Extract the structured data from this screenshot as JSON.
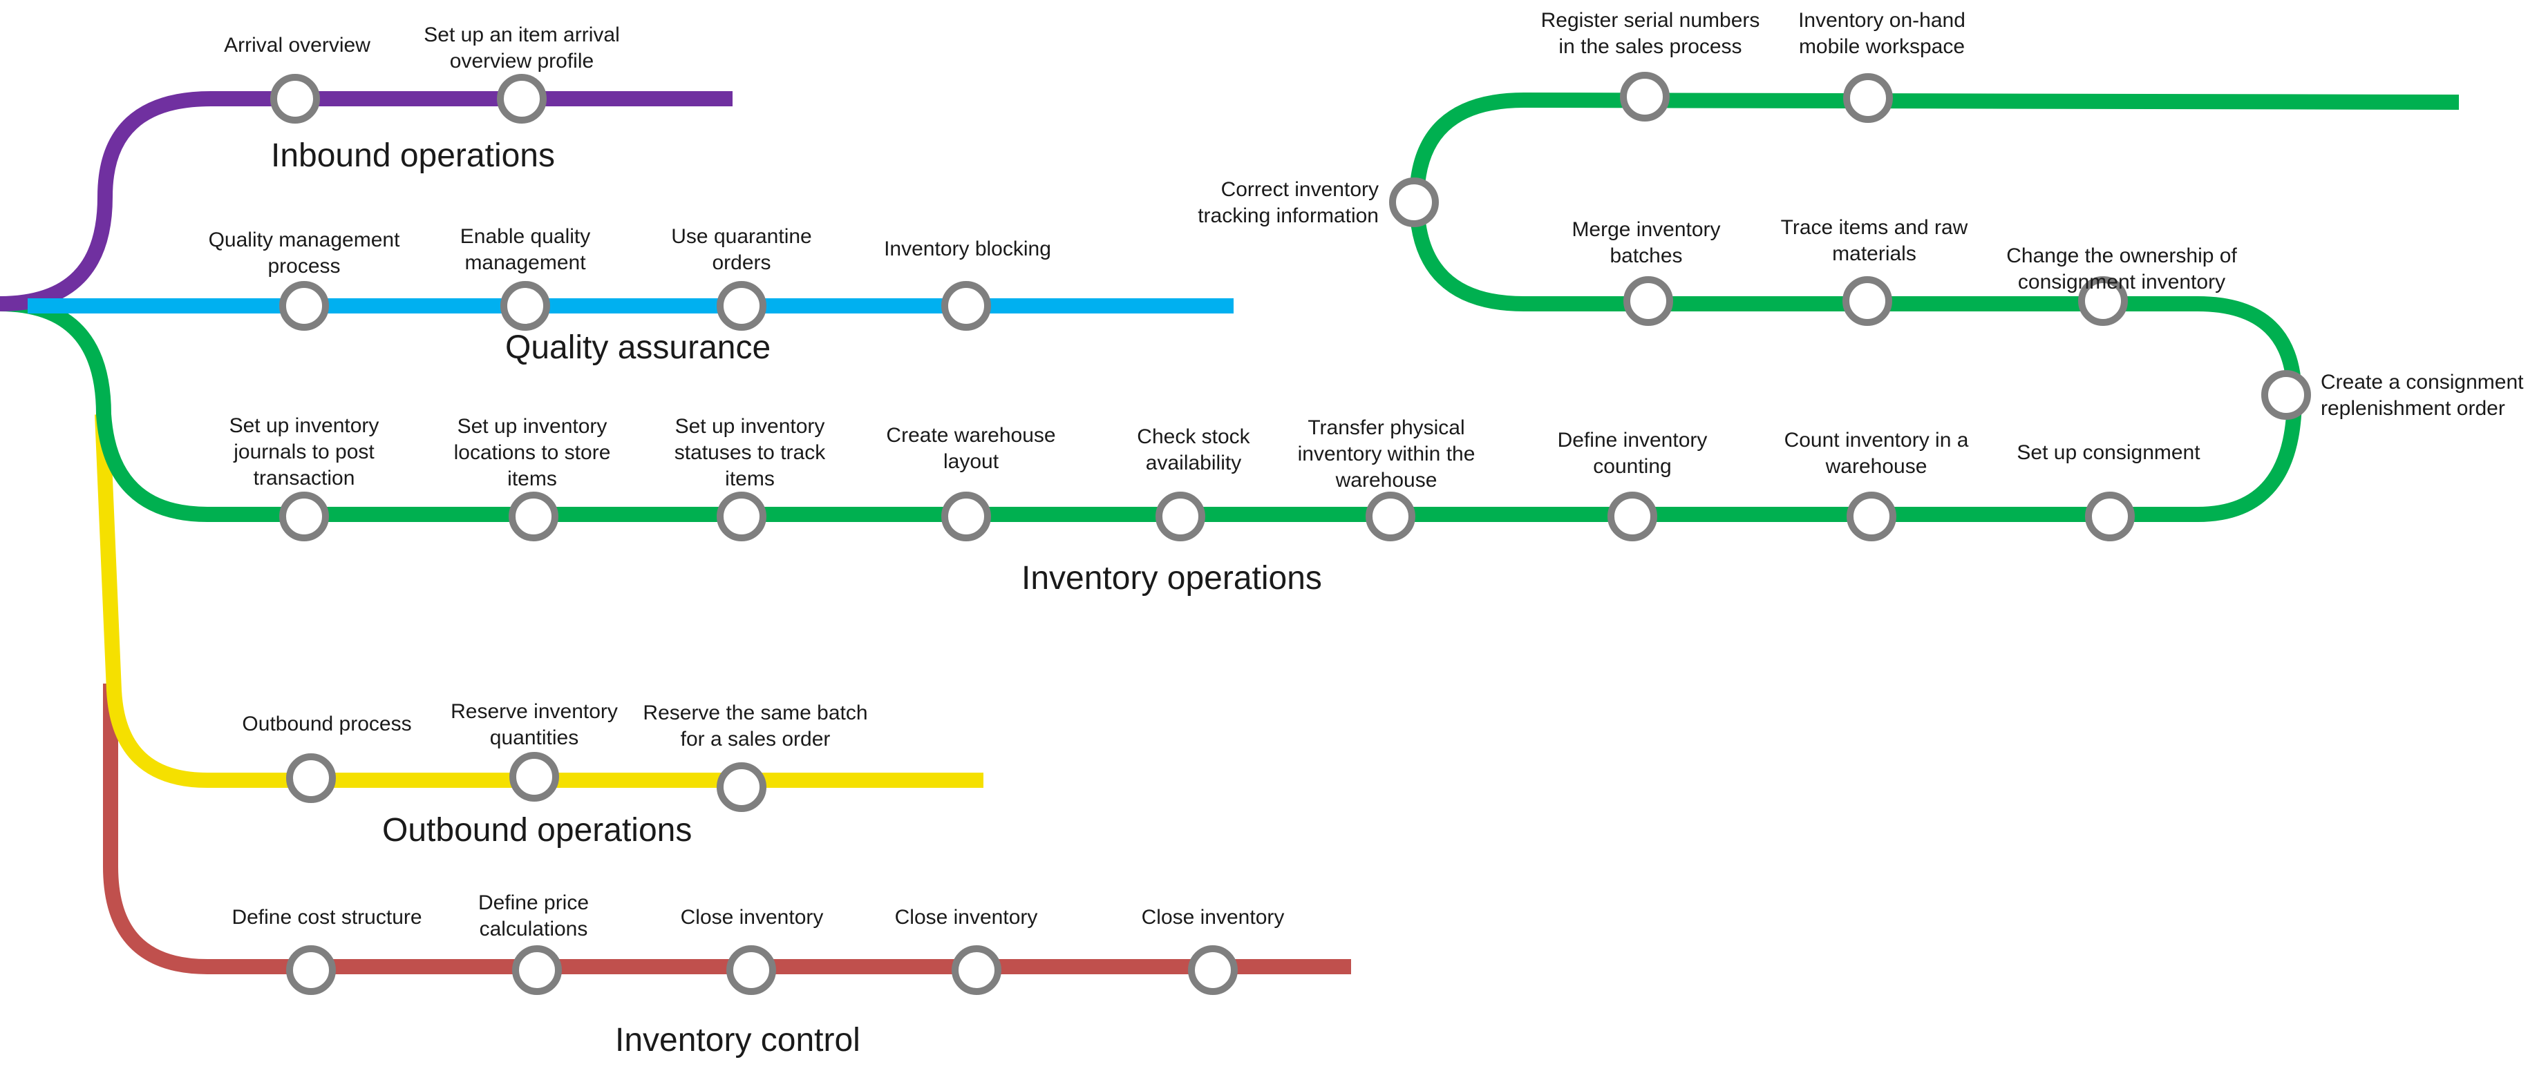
{
  "colors": {
    "inbound": "#7030a0",
    "quality": "#00b0f0",
    "inventory": "#00b050",
    "outbound": "#f5e000",
    "control": "#c0504d",
    "stop_ring": "#7f7f7f"
  },
  "lines": {
    "inbound": {
      "title": "Inbound operations",
      "stops": [
        {
          "label": "Arrival overview"
        },
        {
          "label": "Set up an item arrival\noverview profile"
        }
      ]
    },
    "quality": {
      "title": "Quality assurance",
      "stops": [
        {
          "label": "Quality management\nprocess"
        },
        {
          "label": "Enable quality\nmanagement"
        },
        {
          "label": "Use quarantine\norders"
        },
        {
          "label": "Inventory blocking"
        }
      ]
    },
    "inventory": {
      "title": "Inventory operations",
      "stops_row1": [
        {
          "label": "Set up inventory\njournals to post\ntransaction"
        },
        {
          "label": "Set up inventory\nlocations to store\nitems"
        },
        {
          "label": "Set up inventory\nstatuses to track\nitems"
        },
        {
          "label": "Create warehouse\nlayout"
        },
        {
          "label": "Check stock\navailability"
        },
        {
          "label": "Transfer physical\ninventory within the\nwarehouse"
        },
        {
          "label": "Define inventory\ncounting"
        },
        {
          "label": "Count inventory in a\nwarehouse"
        },
        {
          "label": "Set up consignment"
        }
      ],
      "stop_right_turn": {
        "label": "Create a consignment\nreplenishment order"
      },
      "stops_row2": [
        {
          "label": "Change the ownership of\nconsignment inventory"
        },
        {
          "label": "Trace items and raw\nmaterials"
        },
        {
          "label": "Merge inventory\nbatches"
        }
      ],
      "stop_left_turn": {
        "label": "Correct inventory\ntracking information"
      },
      "stops_row3": [
        {
          "label": "Register serial numbers\nin the sales process"
        },
        {
          "label": "Inventory on-hand\nmobile workspace"
        }
      ]
    },
    "outbound": {
      "title": "Outbound operations",
      "stops": [
        {
          "label": "Outbound process"
        },
        {
          "label": "Reserve inventory\nquantities"
        },
        {
          "label": "Reserve the same batch\nfor a sales order"
        }
      ]
    },
    "control": {
      "title": "Inventory control",
      "stops": [
        {
          "label": "Define cost structure"
        },
        {
          "label": "Define price\ncalculations"
        },
        {
          "label": "Close inventory"
        },
        {
          "label": "Close inventory"
        },
        {
          "label": "Close inventory"
        }
      ]
    }
  }
}
